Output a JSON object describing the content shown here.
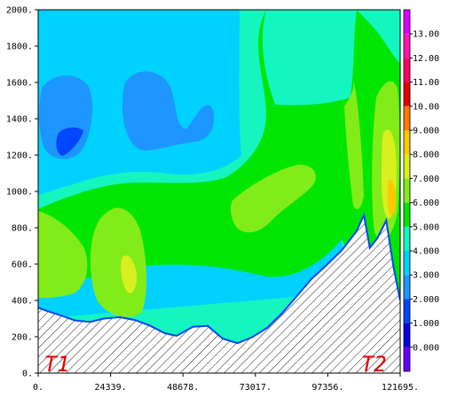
{
  "chart_data": {
    "type": "contour",
    "title": "",
    "xlabel": "",
    "ylabel": "",
    "xlim": [
      0,
      121695
    ],
    "ylim": [
      0,
      2000
    ],
    "x_ticks": [
      {
        "value": 0,
        "label": "0."
      },
      {
        "value": 24339,
        "label": "24339."
      },
      {
        "value": 48678,
        "label": "48678."
      },
      {
        "value": 73017,
        "label": "73017."
      },
      {
        "value": 97356,
        "label": "97356."
      },
      {
        "value": 121695,
        "label": "121695."
      }
    ],
    "y_ticks": [
      {
        "value": 0,
        "label": "0."
      },
      {
        "value": 200,
        "label": "200."
      },
      {
        "value": 400,
        "label": "400."
      },
      {
        "value": 600,
        "label": "600."
      },
      {
        "value": 800,
        "label": "800."
      },
      {
        "value": 1000,
        "label": "1000."
      },
      {
        "value": 1200,
        "label": "1200."
      },
      {
        "value": 1400,
        "label": "1400."
      },
      {
        "value": 1600,
        "label": "1600."
      },
      {
        "value": 1800,
        "label": "1800."
      },
      {
        "value": 2000,
        "label": "2000."
      }
    ],
    "colorbar": {
      "ticks": [
        "0.000",
        "1.000",
        "2.000",
        "3.000",
        "4.000",
        "5.000",
        "6.000",
        "7.000",
        "8.000",
        "9.000",
        "10.00",
        "11.00",
        "12.00",
        "13.00"
      ],
      "bins": [
        {
          "lo": -1,
          "hi": 0,
          "color": "#6a00ff"
        },
        {
          "lo": 0,
          "hi": 1,
          "color": "#0a00e6"
        },
        {
          "lo": 1,
          "hi": 2,
          "color": "#0046ff"
        },
        {
          "lo": 2,
          "hi": 3,
          "color": "#1e96ff"
        },
        {
          "lo": 3,
          "hi": 4,
          "color": "#00d2ff"
        },
        {
          "lo": 4,
          "hi": 5,
          "color": "#14f5c0"
        },
        {
          "lo": 5,
          "hi": 6,
          "color": "#00e600"
        },
        {
          "lo": 6,
          "hi": 7,
          "color": "#82ec18"
        },
        {
          "lo": 7,
          "hi": 8,
          "color": "#d8f020"
        },
        {
          "lo": 8,
          "hi": 9,
          "color": "#ffc800"
        },
        {
          "lo": 9,
          "hi": 10,
          "color": "#ff7800"
        },
        {
          "lo": 10,
          "hi": 11,
          "color": "#e60000"
        },
        {
          "lo": 11,
          "hi": 12,
          "color": "#ff0064"
        },
        {
          "lo": 12,
          "hi": 13,
          "color": "#ff14b4"
        },
        {
          "lo": 13,
          "hi": 14,
          "color": "#dc00ff"
        }
      ]
    },
    "terrain": {
      "fill": "hatched",
      "profile": [
        [
          0,
          360
        ],
        [
          2500,
          345
        ],
        [
          7500,
          318
        ],
        [
          12500,
          290
        ],
        [
          17500,
          282
        ],
        [
          22000,
          300
        ],
        [
          27500,
          308
        ],
        [
          32500,
          292
        ],
        [
          37500,
          262
        ],
        [
          42500,
          220
        ],
        [
          46500,
          205
        ],
        [
          52000,
          255
        ],
        [
          57000,
          260
        ],
        [
          62000,
          190
        ],
        [
          67000,
          165
        ],
        [
          72000,
          198
        ],
        [
          77000,
          250
        ],
        [
          82000,
          330
        ],
        [
          87000,
          425
        ],
        [
          92000,
          520
        ],
        [
          97000,
          595
        ],
        [
          102000,
          675
        ],
        [
          107000,
          780
        ],
        [
          109500,
          870
        ],
        [
          111500,
          690
        ],
        [
          114000,
          742
        ],
        [
          117000,
          840
        ],
        [
          119500,
          580
        ],
        [
          121695,
          400
        ]
      ]
    },
    "annotations": [
      {
        "text": "T1",
        "x": 2000,
        "y": 50,
        "color": "#e60000"
      },
      {
        "text": "T2",
        "x": 108500,
        "y": 50,
        "color": "#e60000"
      }
    ]
  }
}
